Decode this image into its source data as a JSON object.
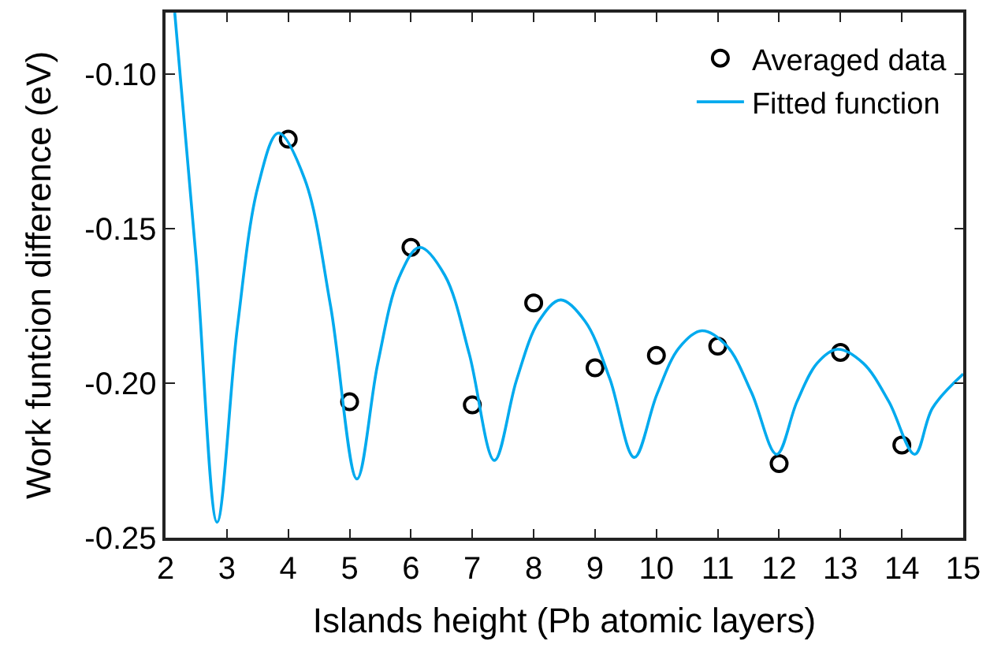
{
  "chart_data": {
    "type": "scatter",
    "xlabel": "Islands height (Pb atomic layers)",
    "ylabel": "Work funtcion difference (eV)",
    "xlim": [
      2,
      15
    ],
    "xticks": [
      2,
      3,
      4,
      5,
      6,
      7,
      8,
      9,
      10,
      11,
      12,
      13,
      14,
      15
    ],
    "ylim": [
      -0.25,
      -0.08
    ],
    "yticks": [
      -0.25,
      {
        "value": -0.2,
        "label": "-0.20"
      },
      -0.15,
      {
        "value": -0.1,
        "label": "-0.10"
      }
    ],
    "legend": "top right",
    "series": [
      {
        "name": "Averaged data",
        "marker": "circle",
        "color": "#000000",
        "x": [
          4,
          5,
          6,
          7,
          8,
          9,
          10,
          11,
          12,
          13,
          14
        ],
        "values": [
          -0.121,
          -0.206,
          -0.156,
          -0.207,
          -0.174,
          -0.195,
          -0.191,
          -0.188,
          -0.226,
          -0.19,
          -0.22
        ]
      },
      {
        "name": "Fitted function",
        "type": "line",
        "marker": "none",
        "line_style": "solid",
        "color": "#00aaee",
        "x": [
          2.15,
          2.5,
          2.84,
          3.17,
          3.51,
          3.84,
          4.27,
          4.69,
          5.12,
          5.46,
          5.8,
          6.14,
          6.55,
          6.95,
          7.36,
          7.72,
          8.08,
          8.44,
          8.84,
          9.24,
          9.64,
          10.01,
          10.37,
          10.74,
          11.15,
          11.55,
          11.96,
          12.29,
          12.62,
          12.95,
          13.37,
          13.79,
          14.21,
          14.5,
          15.0
        ],
        "values": [
          -0.08,
          -0.16,
          -0.245,
          -0.182,
          -0.136,
          -0.119,
          -0.134,
          -0.175,
          -0.231,
          -0.1935,
          -0.166,
          -0.156,
          -0.165,
          -0.1905,
          -0.225,
          -0.199,
          -0.18,
          -0.173,
          -0.18,
          -0.1985,
          -0.224,
          -0.2035,
          -0.1885,
          -0.183,
          -0.188,
          -0.203,
          -0.223,
          -0.206,
          -0.1935,
          -0.189,
          -0.1935,
          -0.206,
          -0.223,
          -0.208,
          -0.197
        ]
      }
    ]
  }
}
